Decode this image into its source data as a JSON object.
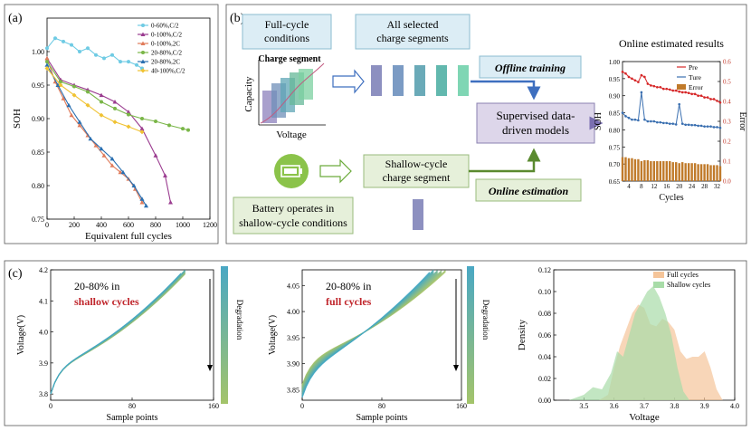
{
  "panels": {
    "a": "(a)",
    "b": "(b)",
    "c": "(c)"
  },
  "chart_data": [
    {
      "type": "line",
      "panel": "a",
      "xlabel": "Equivalent full cycles",
      "ylabel": "SOH",
      "xlim": [
        0,
        1200
      ],
      "ylim": [
        0.75,
        1.05
      ],
      "xticks": [
        "0",
        "200",
        "400",
        "600",
        "800",
        "1000",
        "1200"
      ],
      "yticks": [
        "0.75",
        "0.80",
        "0.85",
        "0.90",
        "0.95",
        "1.00"
      ],
      "series": [
        {
          "name": "0-60%,C/2",
          "color": "#6fcbe4",
          "marker": "circle",
          "x": [
            0,
            60,
            120,
            180,
            240,
            300,
            360,
            420,
            480,
            540,
            600,
            660,
            700
          ],
          "y": [
            1.005,
            1.02,
            1.015,
            1.01,
            1.0,
            1.005,
            0.995,
            0.99,
            0.995,
            0.985,
            0.985,
            0.98,
            0.975
          ]
        },
        {
          "name": "0-100%,C/2",
          "color": "#9a3b8f",
          "marker": "triangle",
          "x": [
            0,
            100,
            200,
            300,
            400,
            500,
            600,
            700,
            800,
            870,
            910
          ],
          "y": [
            0.99,
            0.958,
            0.95,
            0.943,
            0.935,
            0.925,
            0.91,
            0.885,
            0.845,
            0.815,
            0.775
          ]
        },
        {
          "name": "0-100%,2C",
          "color": "#e07b5a",
          "marker": "triangle",
          "x": [
            0,
            60,
            120,
            180,
            240,
            300,
            360,
            420,
            480,
            540,
            600,
            650,
            700
          ],
          "y": [
            0.99,
            0.955,
            0.93,
            0.905,
            0.89,
            0.875,
            0.86,
            0.845,
            0.83,
            0.82,
            0.81,
            0.795,
            0.775
          ]
        },
        {
          "name": "20-80%,C/2",
          "color": "#7ab648",
          "marker": "circle",
          "x": [
            0,
            100,
            200,
            300,
            400,
            500,
            600,
            700,
            800,
            900,
            1000,
            1040
          ],
          "y": [
            0.985,
            0.955,
            0.948,
            0.94,
            0.925,
            0.915,
            0.906,
            0.9,
            0.896,
            0.89,
            0.885,
            0.883
          ]
        },
        {
          "name": "20-80%,2C",
          "color": "#2a6fb0",
          "marker": "triangle",
          "x": [
            0,
            80,
            160,
            240,
            320,
            400,
            480,
            560,
            640,
            700,
            730
          ],
          "y": [
            0.98,
            0.95,
            0.92,
            0.895,
            0.87,
            0.855,
            0.84,
            0.82,
            0.8,
            0.78,
            0.77
          ]
        },
        {
          "name": "40-100%,C/2",
          "color": "#f0c232",
          "marker": "diamond",
          "x": [
            0,
            100,
            200,
            300,
            400,
            500,
            600,
            700
          ],
          "y": [
            0.975,
            0.95,
            0.935,
            0.92,
            0.905,
            0.895,
            0.888,
            0.88
          ]
        }
      ]
    },
    {
      "type": "line",
      "panel": "b-inset",
      "title": "Online estimated results",
      "xlabel": "Cycles",
      "ylabel": "SOH",
      "ylabel_right": "Error",
      "xlim": [
        2,
        33
      ],
      "ylim": [
        0.65,
        1.0
      ],
      "ylim_right": [
        0,
        0.6
      ],
      "xticks": [
        "4",
        "8",
        "12",
        "16",
        "20",
        "24",
        "28",
        "32"
      ],
      "yticks": [
        "0.65",
        "0.70",
        "0.75",
        "0.80",
        "0.85",
        "0.90",
        "0.95",
        "1.00"
      ],
      "yticks_right": [
        "0.0",
        "0.1",
        "0.2",
        "0.3",
        "0.4",
        "0.5",
        "0.6"
      ],
      "legend": [
        "Pre",
        "Ture",
        "Error"
      ],
      "pre": [
        0.97,
        0.965,
        0.955,
        0.95,
        0.945,
        0.94,
        0.96,
        0.955,
        0.935,
        0.93,
        0.928,
        0.925,
        0.925,
        0.92,
        0.92,
        0.918,
        0.915,
        0.915,
        0.912,
        0.91,
        0.91,
        0.908,
        0.905,
        0.905,
        0.9,
        0.9,
        0.895,
        0.895,
        0.89,
        0.89,
        0.885,
        0.88
      ],
      "true": [
        0.85,
        0.84,
        0.835,
        0.83,
        0.83,
        0.828,
        0.91,
        0.83,
        0.825,
        0.825,
        0.825,
        0.822,
        0.822,
        0.82,
        0.82,
        0.818,
        0.818,
        0.816,
        0.875,
        0.818,
        0.815,
        0.815,
        0.814,
        0.814,
        0.812,
        0.812,
        0.81,
        0.81,
        0.81,
        0.808,
        0.808,
        0.806
      ],
      "error": [
        0.12,
        0.12,
        0.115,
        0.115,
        0.11,
        0.11,
        0.1,
        0.105,
        0.105,
        0.1,
        0.1,
        0.1,
        0.1,
        0.1,
        0.1,
        0.1,
        0.095,
        0.095,
        0.09,
        0.095,
        0.09,
        0.09,
        0.09,
        0.09,
        0.085,
        0.085,
        0.085,
        0.085,
        0.08,
        0.08,
        0.08,
        0.075
      ]
    },
    {
      "type": "line",
      "panel": "c-left",
      "title": "20-80% in shallow cycles",
      "xlabel": "Sample points",
      "ylabel": "Voltage(V)",
      "xlim": [
        0,
        160
      ],
      "ylim": [
        3.78,
        4.2
      ],
      "xticks": [
        "0",
        "80",
        "160"
      ],
      "yticks": [
        "3.8",
        "3.9",
        "4.0",
        "4.1",
        "4.2"
      ],
      "colorbar": "Degradation"
    },
    {
      "type": "line",
      "panel": "c-middle",
      "title": "20-80% in full cycles",
      "xlabel": "Sample points",
      "ylabel": "Voltage(V)",
      "xlim": [
        0,
        160
      ],
      "ylim": [
        3.83,
        4.08
      ],
      "xticks": [
        "0",
        "80",
        "160"
      ],
      "yticks": [
        "3.85",
        "3.90",
        "3.95",
        "4.00",
        "4.05"
      ],
      "colorbar": "Degradation"
    },
    {
      "type": "area",
      "panel": "c-right",
      "xlabel": "Voltage",
      "ylabel": "Density",
      "xlim": [
        3.4,
        4.0
      ],
      "ylim": [
        0,
        0.12
      ],
      "xticks": [
        "3.5",
        "3.6",
        "3.7",
        "3.8",
        "3.9",
        "4.0"
      ],
      "yticks": [
        "0.00",
        "0.02",
        "0.04",
        "0.06",
        "0.08",
        "0.10",
        "0.12"
      ],
      "series": [
        {
          "name": "Full cycles",
          "color": "#f5c59a",
          "x": [
            3.55,
            3.58,
            3.6,
            3.62,
            3.64,
            3.66,
            3.68,
            3.7,
            3.72,
            3.74,
            3.76,
            3.78,
            3.8,
            3.82,
            3.84,
            3.86,
            3.88,
            3.9,
            3.92,
            3.94,
            3.96
          ],
          "y": [
            0,
            0.005,
            0.03,
            0.05,
            0.065,
            0.08,
            0.088,
            0.085,
            0.07,
            0.068,
            0.075,
            0.072,
            0.065,
            0.045,
            0.038,
            0.04,
            0.04,
            0.045,
            0.03,
            0.01,
            0
          ]
        },
        {
          "name": "Shallow cycles",
          "color": "#a8dca8",
          "x": [
            3.45,
            3.5,
            3.53,
            3.56,
            3.59,
            3.61,
            3.63,
            3.65,
            3.67,
            3.69,
            3.71,
            3.73,
            3.75,
            3.77,
            3.79,
            3.81,
            3.83,
            3.85
          ],
          "y": [
            0,
            0.005,
            0.012,
            0.01,
            0.025,
            0.045,
            0.04,
            0.06,
            0.08,
            0.09,
            0.1,
            0.105,
            0.095,
            0.08,
            0.06,
            0.03,
            0.008,
            0
          ]
        }
      ]
    }
  ],
  "diagram": {
    "full_cycle": "Full-cycle\nconditions",
    "all_segments": "All selected\ncharge segments",
    "charge_segment": "Charge segment",
    "capacity": "Capacity",
    "voltage": "Voltage",
    "offline": "Offline training",
    "supervised": "Supervised data-\ndriven models",
    "shallow_segment": "Shallow-cycle\ncharge segment",
    "online": "Online estimation",
    "battery_text": "Battery operates in\nshallow-cycle conditions"
  }
}
